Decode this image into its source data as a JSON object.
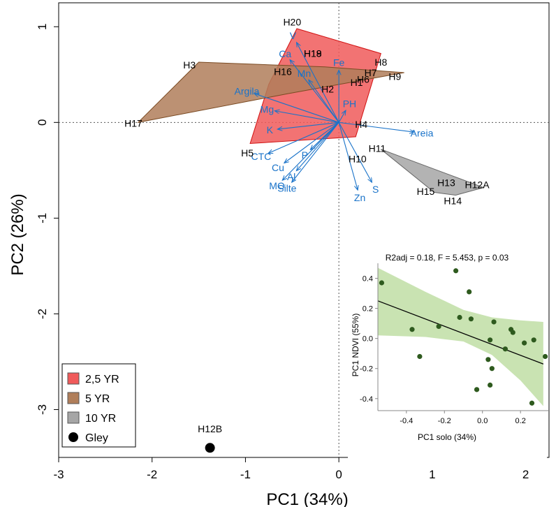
{
  "chart_data": [
    {
      "type": "scatter",
      "subtype": "pca-biplot",
      "xlabel": "PC1 (34%)",
      "ylabel": "PC2 (26%)",
      "xlim": [
        -3.0,
        2.25
      ],
      "ylim": [
        -3.5,
        1.25
      ],
      "xticks": [
        -3,
        -2,
        -1,
        0,
        1,
        2
      ],
      "xtick_labels": [
        "-3",
        "-2",
        "-1",
        "0",
        "1",
        "2"
      ],
      "yticks": [
        -3,
        -2,
        -1,
        0,
        1
      ],
      "ytick_labels": [
        "-3",
        "-2",
        "-1",
        "0",
        "1"
      ],
      "zero_lines": true,
      "grid": false,
      "groups": [
        {
          "name": "2,5 YR",
          "color": "#f05a5a",
          "stroke": "#d01010",
          "hull": [
            [
              -0.45,
              0.98
            ],
            [
              0.45,
              0.72
            ],
            [
              0.18,
              -0.15
            ],
            [
              -0.95,
              -0.22
            ],
            [
              -0.75,
              0.4
            ]
          ]
        },
        {
          "name": "5 YR",
          "color": "#b07e5a",
          "stroke": "#7a4a22",
          "hull": [
            [
              -2.15,
              0.0
            ],
            [
              -1.5,
              0.63
            ],
            [
              -0.15,
              0.58
            ],
            [
              0.7,
              0.52
            ],
            [
              -0.55,
              0.3
            ]
          ]
        },
        {
          "name": "10 YR",
          "color": "#a6a6a6",
          "stroke": "#666666",
          "hull": [
            [
              0.45,
              -0.28
            ],
            [
              1.55,
              -0.68
            ],
            [
              1.25,
              -0.76
            ],
            [
              1.02,
              -0.73
            ]
          ]
        },
        {
          "name": "Gley",
          "color": "#000000",
          "points": [
            [
              -1.38,
              -3.4
            ]
          ]
        }
      ],
      "sample_labels": [
        {
          "text": "H20",
          "x": -0.5,
          "y": 1.05
        },
        {
          "text": "H19",
          "x": -0.28,
          "y": 0.72
        },
        {
          "text": "H18",
          "x": -0.28,
          "y": 0.72
        },
        {
          "text": "H8",
          "x": 0.45,
          "y": 0.63
        },
        {
          "text": "H3",
          "x": -1.6,
          "y": 0.6
        },
        {
          "text": "H16",
          "x": -0.6,
          "y": 0.53
        },
        {
          "text": "H7",
          "x": 0.34,
          "y": 0.52
        },
        {
          "text": "H9",
          "x": 0.6,
          "y": 0.48
        },
        {
          "text": "H1",
          "x": 0.19,
          "y": 0.42
        },
        {
          "text": "H6",
          "x": 0.26,
          "y": 0.45
        },
        {
          "text": "H2",
          "x": -0.12,
          "y": 0.35
        },
        {
          "text": "H17",
          "x": -2.2,
          "y": -0.01
        },
        {
          "text": "H4",
          "x": 0.24,
          "y": -0.02
        },
        {
          "text": "H5",
          "x": -0.98,
          "y": -0.32
        },
        {
          "text": "H10",
          "x": 0.2,
          "y": -0.38
        },
        {
          "text": "H11",
          "x": 0.41,
          "y": -0.27
        },
        {
          "text": "H13",
          "x": 1.15,
          "y": -0.63
        },
        {
          "text": "H12A",
          "x": 1.48,
          "y": -0.65
        },
        {
          "text": "H15",
          "x": 0.93,
          "y": -0.72
        },
        {
          "text": "H14",
          "x": 1.22,
          "y": -0.82
        },
        {
          "text": "H12B",
          "x": -1.38,
          "y": -3.2
        }
      ],
      "loadings": [
        {
          "name": "Ca",
          "x": -0.52,
          "y": 0.65
        },
        {
          "name": "V",
          "x": -0.45,
          "y": 0.83
        },
        {
          "name": "Fe",
          "x": 0.0,
          "y": 0.54
        },
        {
          "name": "Mn",
          "x": -0.32,
          "y": 0.44
        },
        {
          "name": "Argila",
          "x": -0.9,
          "y": 0.3
        },
        {
          "name": "Mg",
          "x": -0.68,
          "y": 0.12
        },
        {
          "name": "PH",
          "x": 0.07,
          "y": 0.12
        },
        {
          "name": "K",
          "x": -0.65,
          "y": -0.07
        },
        {
          "name": "Areia",
          "x": 0.8,
          "y": -0.1
        },
        {
          "name": "CTC",
          "x": -0.75,
          "y": -0.32
        },
        {
          "name": "Cu",
          "x": -0.58,
          "y": -0.42
        },
        {
          "name": "P",
          "x": -0.3,
          "y": -0.28
        },
        {
          "name": "Silte",
          "x": -0.5,
          "y": -0.62
        },
        {
          "name": "Al",
          "x": -0.45,
          "y": -0.5
        },
        {
          "name": "MO",
          "x": -0.6,
          "y": -0.6
        },
        {
          "name": "Zn",
          "x": 0.2,
          "y": -0.7
        },
        {
          "name": "S",
          "x": 0.35,
          "y": -0.62
        }
      ],
      "legend": {
        "position": "bottom-left",
        "entries": [
          "2,5 YR",
          "5 YR",
          "10 YR",
          "Gley"
        ]
      },
      "colors": {
        "loading": "#1a73c9",
        "label": "#000000",
        "zero_line": "#555555"
      }
    },
    {
      "type": "scatter",
      "title": "R2adj = 0.18, F = 5.453, p = 0.03",
      "xlabel": "PC1 solo (34%)",
      "ylabel": "PC1 NDVI (55%)",
      "xlim": [
        -0.55,
        0.35
      ],
      "ylim": [
        -0.48,
        0.5
      ],
      "xticks": [
        -0.4,
        -0.2,
        0.0,
        0.2
      ],
      "xtick_labels": [
        "-0.4",
        "-0.2",
        "0.0",
        "0.2"
      ],
      "yticks": [
        -0.4,
        -0.2,
        0.0,
        0.2,
        0.4
      ],
      "ytick_labels": [
        "-0.4",
        "-0.2",
        "0.0",
        "0.2",
        "0.4"
      ],
      "points": [
        [
          -0.53,
          0.37
        ],
        [
          -0.14,
          0.45
        ],
        [
          -0.07,
          0.31
        ],
        [
          -0.37,
          0.06
        ],
        [
          -0.23,
          0.08
        ],
        [
          -0.12,
          0.14
        ],
        [
          -0.06,
          0.13
        ],
        [
          -0.33,
          -0.12
        ],
        [
          0.06,
          0.11
        ],
        [
          0.04,
          -0.01
        ],
        [
          0.12,
          -0.07
        ],
        [
          0.15,
          0.06
        ],
        [
          0.16,
          0.04
        ],
        [
          0.22,
          -0.03
        ],
        [
          0.27,
          -0.01
        ],
        [
          0.33,
          -0.12
        ],
        [
          0.03,
          -0.14
        ],
        [
          0.05,
          -0.2
        ],
        [
          0.04,
          -0.31
        ],
        [
          -0.03,
          -0.34
        ],
        [
          0.26,
          -0.43
        ]
      ],
      "regression": {
        "from": [
          -0.55,
          0.25
        ],
        "to": [
          0.32,
          -0.17
        ]
      },
      "band_upper": [
        [
          -0.55,
          0.47
        ],
        [
          -0.3,
          0.31
        ],
        [
          -0.1,
          0.19
        ],
        [
          0.05,
          0.14
        ],
        [
          0.2,
          0.12
        ],
        [
          0.32,
          0.11
        ]
      ],
      "band_lower": [
        [
          -0.55,
          0.02
        ],
        [
          -0.3,
          0.01
        ],
        [
          -0.1,
          -0.02
        ],
        [
          0.05,
          -0.11
        ],
        [
          0.2,
          -0.28
        ],
        [
          0.32,
          -0.45
        ]
      ],
      "colors": {
        "band": "#c9e3b2",
        "point": "#2e5a1e",
        "line": "#000000"
      }
    }
  ]
}
